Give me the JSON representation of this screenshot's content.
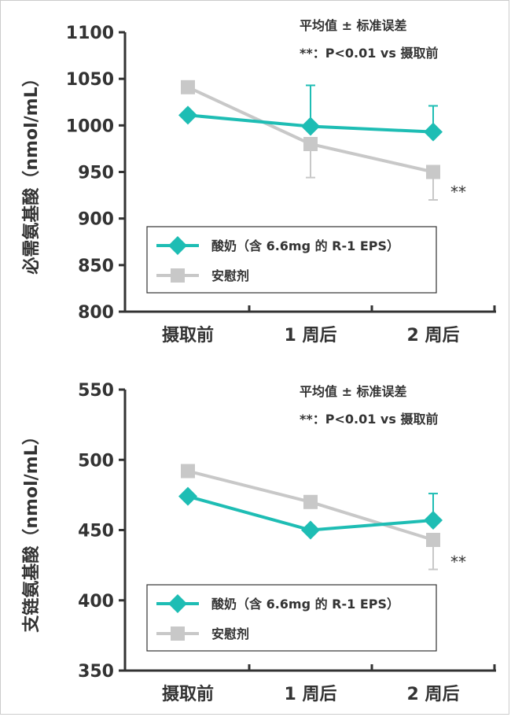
{
  "colors": {
    "treatment": "#1ebdb4",
    "placebo": "#c8c8c8",
    "errorbar": "#1ebdb4",
    "errorbar_placebo": "#c8c8c8",
    "axis": "#333333"
  },
  "chart_data": [
    {
      "type": "line",
      "ylabel": "必需氨基酸（nmol/mL）",
      "categories": [
        "摄取前",
        "1 周后",
        "2 周后"
      ],
      "ylim": [
        800,
        1100
      ],
      "yticks": [
        800,
        850,
        900,
        950,
        1000,
        1050,
        1100
      ],
      "notes": [
        "平均值 ± 标准误差",
        "**：P<0.01 vs 摄取前"
      ],
      "series": [
        {
          "name": "酸奶（含 6.6mg 的 R-1 EPS）",
          "marker": "diamond",
          "values": [
            1011,
            999,
            993
          ],
          "error": [
            0,
            44,
            28
          ]
        },
        {
          "name": "安慰剂",
          "marker": "square",
          "values": [
            1041,
            980,
            950
          ],
          "error": [
            0,
            36,
            30
          ]
        }
      ],
      "significance": {
        "category_index": 2,
        "label": "**"
      },
      "legend_position": "bottom-left"
    },
    {
      "type": "line",
      "ylabel": "支链氨基酸（nmol/mL）",
      "categories": [
        "摄取前",
        "1 周后",
        "2 周后"
      ],
      "ylim": [
        350,
        550
      ],
      "yticks": [
        350,
        400,
        450,
        500,
        550
      ],
      "notes": [
        "平均值 ± 标准误差",
        "**：P<0.01 vs 摄取前"
      ],
      "series": [
        {
          "name": "酸奶（含 6.6mg 的 R-1 EPS）",
          "marker": "diamond",
          "values": [
            474,
            450,
            457
          ],
          "error": [
            0,
            0,
            19
          ]
        },
        {
          "name": "安慰剂",
          "marker": "square",
          "values": [
            492,
            470,
            443
          ],
          "error": [
            0,
            0,
            21
          ]
        }
      ],
      "significance": {
        "category_index": 2,
        "label": "**"
      },
      "legend_position": "bottom-left"
    }
  ]
}
